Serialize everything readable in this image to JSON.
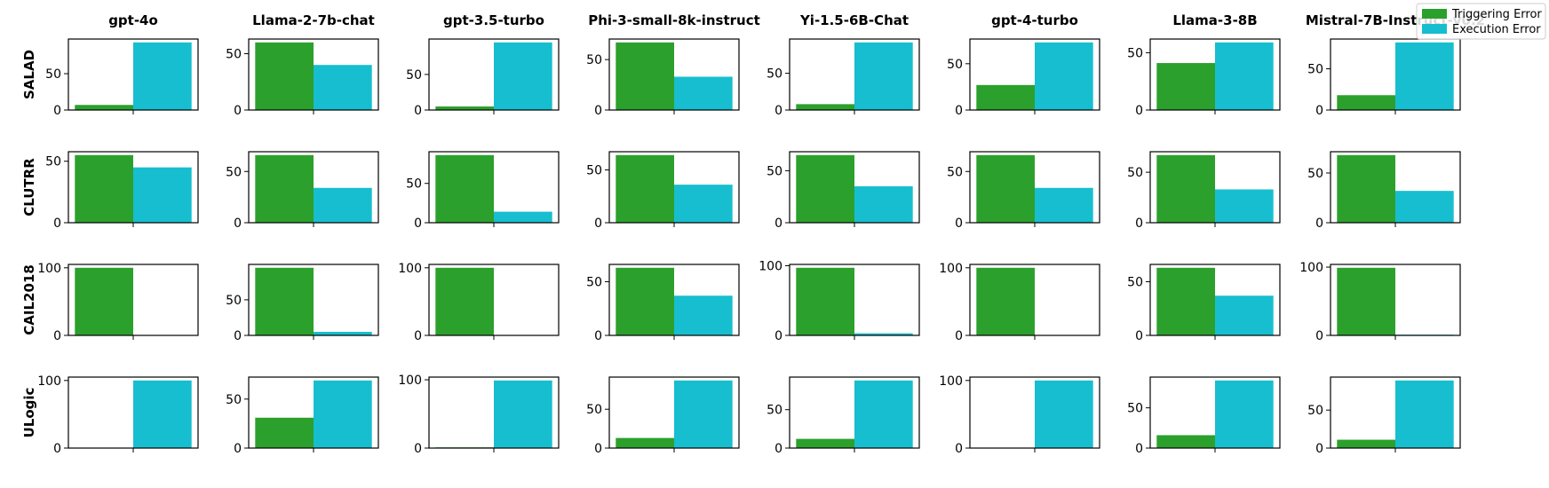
{
  "chart_data": {
    "type": "bar",
    "grid": false,
    "legend_placement": "top-right",
    "models": [
      "gpt-4o",
      "Llama-2-7b-chat",
      "gpt-3.5-turbo",
      "Phi-3-small-8k-instruct",
      "Yi-1.5-6B-Chat",
      "gpt-4-turbo",
      "Llama-3-8B",
      "Mistral-7B-Instruct-v0.2"
    ],
    "datasets": [
      "SALAD",
      "CLUTRR",
      "CAIL2018",
      "ULogic"
    ],
    "series": [
      {
        "name": "Triggering Error",
        "color": "#2ca02c"
      },
      {
        "name": "Execution Error",
        "color": "#17becf"
      }
    ],
    "values": {
      "SALAD": [
        [
          7,
          93
        ],
        [
          60,
          40
        ],
        [
          5,
          95
        ],
        [
          67,
          33
        ],
        [
          8,
          92
        ],
        [
          27,
          73
        ],
        [
          41,
          59
        ],
        [
          18,
          82
        ]
      ],
      "CLUTRR": [
        [
          55,
          45
        ],
        [
          66,
          34
        ],
        [
          86,
          14
        ],
        [
          64,
          36
        ],
        [
          65,
          35
        ],
        [
          66,
          34
        ],
        [
          67,
          33
        ],
        [
          68,
          32
        ]
      ],
      "CAIL2018": [
        [
          100,
          0
        ],
        [
          95,
          5
        ],
        [
          100,
          0
        ],
        [
          63,
          37
        ],
        [
          97,
          3
        ],
        [
          100,
          0
        ],
        [
          63,
          37
        ],
        [
          99,
          1
        ]
      ],
      "ULogic": [
        [
          0,
          100
        ],
        [
          31,
          69
        ],
        [
          1,
          99
        ],
        [
          13,
          87
        ],
        [
          12,
          88
        ],
        [
          0,
          100
        ],
        [
          16,
          84
        ],
        [
          11,
          89
        ]
      ]
    },
    "yticks": {
      "SALAD": [
        [
          0,
          50
        ],
        [
          0,
          50
        ],
        [
          0,
          50
        ],
        [
          0,
          50
        ],
        [
          0,
          50
        ],
        [
          0,
          50
        ],
        [
          0,
          50
        ],
        [
          0,
          50
        ]
      ],
      "CLUTRR": [
        [
          0,
          50
        ],
        [
          0,
          50
        ],
        [
          0,
          50
        ],
        [
          0,
          50
        ],
        [
          0,
          50
        ],
        [
          0,
          50
        ],
        [
          0,
          50
        ],
        [
          0,
          50
        ]
      ],
      "CAIL2018": [
        [
          0,
          100
        ],
        [
          0,
          50
        ],
        [
          0,
          100
        ],
        [
          0,
          50
        ],
        [
          0,
          100
        ],
        [
          0,
          100
        ],
        [
          0,
          50
        ],
        [
          0,
          100
        ]
      ],
      "ULogic": [
        [
          0,
          100
        ],
        [
          0,
          50
        ],
        [
          0,
          100
        ],
        [
          0,
          50
        ],
        [
          0,
          50
        ],
        [
          0,
          100
        ],
        [
          0,
          50
        ],
        [
          0,
          50
        ]
      ]
    }
  }
}
